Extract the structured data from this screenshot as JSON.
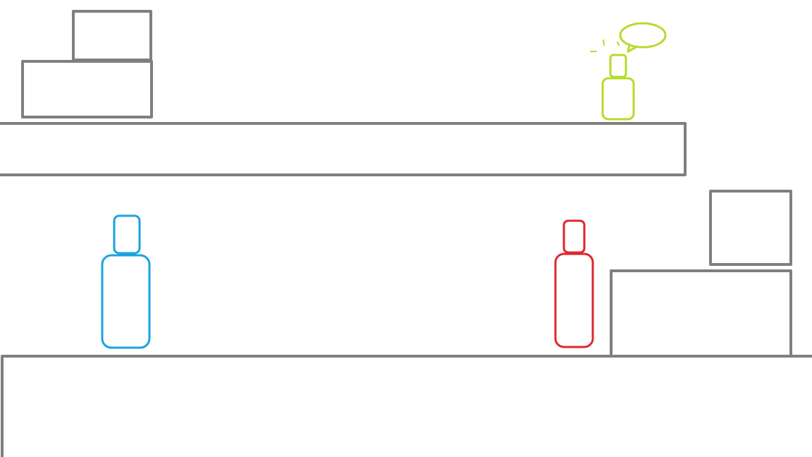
{
  "colors": {
    "background": "#ffffff",
    "block": "#7f7f7f",
    "bottle_blue": "#1aa3e0",
    "bottle_red": "#e0262e",
    "bottle_green": "#b5dc2a"
  },
  "objects": {
    "bottles": [
      {
        "id": "blue",
        "color_key": "bottle_blue",
        "shape": "bottle"
      },
      {
        "id": "red",
        "color_key": "bottle_red",
        "shape": "bottle"
      },
      {
        "id": "green",
        "color_key": "bottle_green",
        "shape": "bottle",
        "has_speech_bubble": true
      }
    ],
    "speech_bubble": {
      "text": ""
    }
  }
}
